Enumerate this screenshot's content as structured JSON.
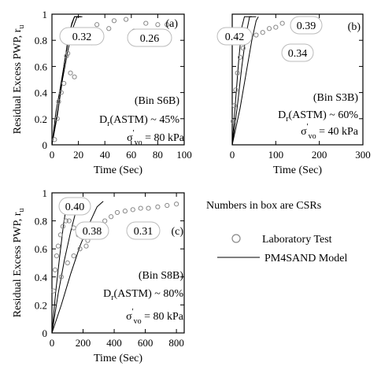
{
  "chart_data": [
    {
      "type": "scatter",
      "panel_label": "(a)",
      "xlabel": "Time (Sec)",
      "ylabel": "Residual Excess PWP, r",
      "ylabel_sub": "u",
      "xlim": [
        0,
        100
      ],
      "ylim": [
        0,
        1
      ],
      "xticks": [
        "0",
        "20",
        "40",
        "60",
        "80",
        "100"
      ],
      "yticks": [
        "0",
        "0.2",
        "0.4",
        "0.6",
        "0.8",
        "1"
      ],
      "bin_label": "(Bin S6B)",
      "dr_label": "D",
      "dr_sub": "r",
      "dr_rest": "(ASTM) ~ 45%",
      "sigma": "σ",
      "sigma_sup": "'",
      "sigma_sub": "vo",
      "sigma_rest": "= 80 kPa",
      "csr_boxes": [
        "0.32",
        "0.26"
      ],
      "lab_points": [
        [
          2,
          0.04
        ],
        [
          4,
          0.2
        ],
        [
          5,
          0.33
        ],
        [
          7,
          0.4
        ],
        [
          9,
          0.47
        ],
        [
          11,
          0.68
        ],
        [
          12,
          0.7
        ],
        [
          14,
          0.55
        ],
        [
          17,
          0.52
        ],
        [
          23,
          0.84
        ],
        [
          30,
          0.78
        ],
        [
          34,
          0.92
        ],
        [
          43,
          0.89
        ],
        [
          47,
          0.95
        ],
        [
          56,
          0.96
        ],
        [
          62,
          0.87
        ],
        [
          71,
          0.93
        ],
        [
          80,
          0.92
        ],
        [
          87,
          0.92
        ]
      ],
      "model_lines": [
        [
          [
            0,
            0
          ],
          [
            3,
            0.25
          ],
          [
            6,
            0.42
          ],
          [
            9,
            0.6
          ],
          [
            12,
            0.78
          ],
          [
            15,
            0.93
          ],
          [
            17,
            0.98
          ],
          [
            22,
            0.98
          ]
        ],
        [
          [
            0,
            0
          ],
          [
            4,
            0.22
          ],
          [
            8,
            0.5
          ],
          [
            12,
            0.72
          ],
          [
            16,
            0.9
          ],
          [
            19,
            0.98
          ],
          [
            23,
            0.98
          ]
        ],
        [
          [
            0,
            0
          ],
          [
            5,
            0.3
          ],
          [
            9,
            0.6
          ],
          [
            13,
            0.86
          ],
          [
            17,
            0.98
          ],
          [
            20,
            0.98
          ]
        ]
      ]
    },
    {
      "type": "scatter",
      "panel_label": "(b)",
      "xlabel": "Time (Sec)",
      "xlim": [
        0,
        300
      ],
      "ylim": [
        0,
        1
      ],
      "xticks": [
        "0",
        "100",
        "200",
        "300"
      ],
      "bin_label": "(Bin S3B)",
      "dr_label": "D",
      "dr_sub": "r",
      "dr_rest": "(ASTM) ~ 60%",
      "sigma": "σ",
      "sigma_sup": "'",
      "sigma_sub": "vo",
      "sigma_rest": "= 40 kPa",
      "csr_boxes": [
        "0.42",
        "0.39",
        "0.34"
      ],
      "lab_points": [
        [
          2,
          0.18
        ],
        [
          5,
          0.3
        ],
        [
          8,
          0.42
        ],
        [
          12,
          0.55
        ],
        [
          18,
          0.67
        ],
        [
          25,
          0.74
        ],
        [
          32,
          0.8
        ],
        [
          40,
          0.84
        ],
        [
          55,
          0.84
        ],
        [
          70,
          0.86
        ],
        [
          85,
          0.89
        ],
        [
          100,
          0.9
        ],
        [
          115,
          0.93
        ]
      ],
      "model_lines": [
        [
          [
            0,
            0
          ],
          [
            8,
            0.35
          ],
          [
            15,
            0.65
          ],
          [
            22,
            0.9
          ],
          [
            28,
            0.98
          ],
          [
            45,
            0.98
          ]
        ],
        [
          [
            0,
            0
          ],
          [
            12,
            0.3
          ],
          [
            22,
            0.6
          ],
          [
            32,
            0.85
          ],
          [
            40,
            0.98
          ],
          [
            55,
            0.98
          ]
        ],
        [
          [
            0,
            0
          ],
          [
            18,
            0.28
          ],
          [
            32,
            0.55
          ],
          [
            45,
            0.8
          ],
          [
            55,
            0.95
          ],
          [
            60,
            0.98
          ]
        ]
      ]
    },
    {
      "type": "scatter",
      "panel_label": "(c)",
      "xlabel": "Time (Sec)",
      "ylabel": "Residual Excess PWP, r",
      "ylabel_sub": "u",
      "xlim": [
        0,
        850
      ],
      "ylim": [
        0,
        1
      ],
      "xticks": [
        "0",
        "200",
        "400",
        "600",
        "800"
      ],
      "yticks": [
        "0",
        "0.2",
        "0.4",
        "0.6",
        "0.8",
        "1"
      ],
      "bin_label": "(Bin S8B)",
      "dr_label": "D",
      "dr_sub": "r",
      "dr_rest": "(ASTM) ~ 80%",
      "sigma": "σ",
      "sigma_sup": "'",
      "sigma_sub": "vo",
      "sigma_rest": "= 80 kPa",
      "csr_boxes": [
        "0.40",
        "0.38",
        "0.31"
      ],
      "lab_points": [
        [
          10,
          0.3
        ],
        [
          20,
          0.45
        ],
        [
          30,
          0.55
        ],
        [
          40,
          0.62
        ],
        [
          55,
          0.7
        ],
        [
          70,
          0.76
        ],
        [
          90,
          0.8
        ],
        [
          110,
          0.8
        ],
        [
          140,
          0.75
        ],
        [
          170,
          0.7
        ],
        [
          200,
          0.68
        ],
        [
          230,
          0.66
        ],
        [
          260,
          0.74
        ],
        [
          300,
          0.76
        ],
        [
          340,
          0.8
        ],
        [
          380,
          0.83
        ],
        [
          420,
          0.86
        ],
        [
          470,
          0.87
        ],
        [
          520,
          0.88
        ],
        [
          570,
          0.89
        ],
        [
          620,
          0.89
        ],
        [
          680,
          0.9
        ],
        [
          740,
          0.91
        ],
        [
          800,
          0.92
        ],
        [
          60,
          0.4
        ],
        [
          100,
          0.5
        ],
        [
          140,
          0.55
        ],
        [
          180,
          0.6
        ],
        [
          220,
          0.62
        ]
      ],
      "model_lines": [
        [
          [
            0,
            0
          ],
          [
            25,
            0.3
          ],
          [
            50,
            0.55
          ],
          [
            75,
            0.78
          ],
          [
            95,
            0.92
          ],
          [
            110,
            0.94
          ]
        ],
        [
          [
            0,
            0
          ],
          [
            40,
            0.28
          ],
          [
            80,
            0.52
          ],
          [
            120,
            0.72
          ],
          [
            150,
            0.85
          ],
          [
            175,
            0.92
          ],
          [
            200,
            0.95
          ]
        ],
        [
          [
            0,
            0
          ],
          [
            60,
            0.2
          ],
          [
            120,
            0.42
          ],
          [
            180,
            0.62
          ],
          [
            240,
            0.78
          ],
          [
            290,
            0.9
          ],
          [
            330,
            0.94
          ]
        ]
      ]
    }
  ],
  "legend": {
    "note": "Numbers in box are CSRs",
    "items": [
      {
        "marker": "circle",
        "label": "Laboratory Test"
      },
      {
        "marker": "line",
        "label": "PM4SAND Model"
      }
    ]
  },
  "colors": {
    "lab_marker": "#888888",
    "model_line": "#000000",
    "box": "#bbbbbb"
  }
}
